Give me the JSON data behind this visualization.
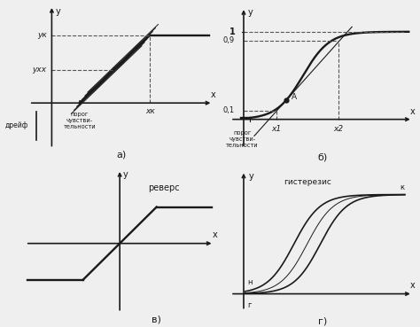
{
  "bg_color": "#efefef",
  "line_color": "#1a1a1a",
  "dashed_color": "#555555",
  "label_a": "а)",
  "label_b": "б)",
  "label_v": "в)",
  "label_g": "г)",
  "text_revers": "реверс",
  "text_gisterezis": "гистерезис",
  "text_dreif": "дрейф",
  "text_porog": "порог\nчувстви-\nтельности",
  "text_yk": "yк",
  "text_yxx": "yхх",
  "text_xk_a": "xк",
  "text_x1": "x1",
  "text_x2": "x2",
  "text_1": "1",
  "text_09": "0,9",
  "text_01": "0,1",
  "text_A": "A",
  "text_r": "г",
  "text_n": "н",
  "text_k": "к"
}
